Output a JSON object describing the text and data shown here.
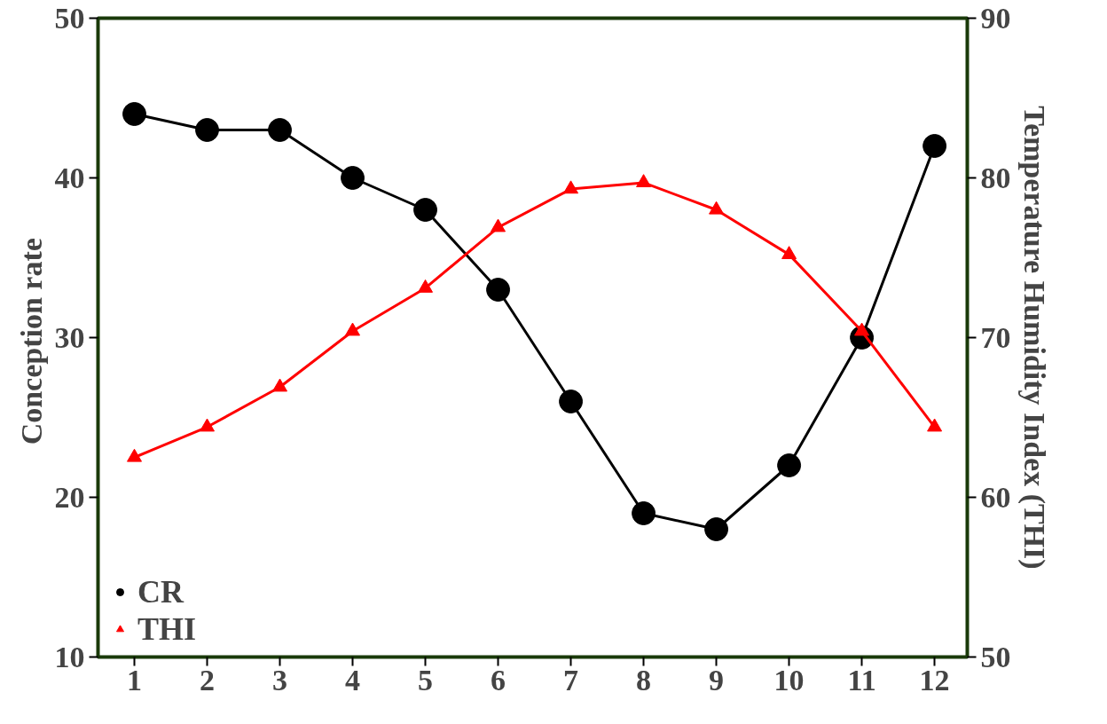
{
  "chart_data": {
    "type": "line",
    "ylabel": "Conception  rate",
    "y2label": "Temperature Humidity Index (THI)",
    "x": [
      1,
      2,
      3,
      4,
      5,
      6,
      7,
      8,
      9,
      10,
      11,
      12
    ],
    "xlim": [
      0.5,
      12.45
    ],
    "xticks": [
      1,
      2,
      3,
      4,
      5,
      6,
      7,
      8,
      9,
      10,
      11,
      12
    ],
    "ylim": [
      10,
      50
    ],
    "yticks": [
      10,
      20,
      30,
      40,
      50
    ],
    "y2lim": [
      50,
      90
    ],
    "y2ticks": [
      50,
      60,
      70,
      80,
      90
    ],
    "legend": "bottom left",
    "grid": false,
    "series": [
      {
        "name": "CR",
        "color": "#000000",
        "marker": "circle",
        "values": [
          44,
          43,
          43,
          40,
          38,
          33,
          26,
          19,
          18,
          22,
          30,
          42
        ]
      },
      {
        "name": "THI",
        "color": "#ff0000",
        "marker": "triangle",
        "axis": "y2",
        "values": [
          62.5,
          64.4,
          66.9,
          70.4,
          73.1,
          76.9,
          79.3,
          79.7,
          78.0,
          75.2,
          70.4,
          64.4
        ]
      }
    ]
  }
}
